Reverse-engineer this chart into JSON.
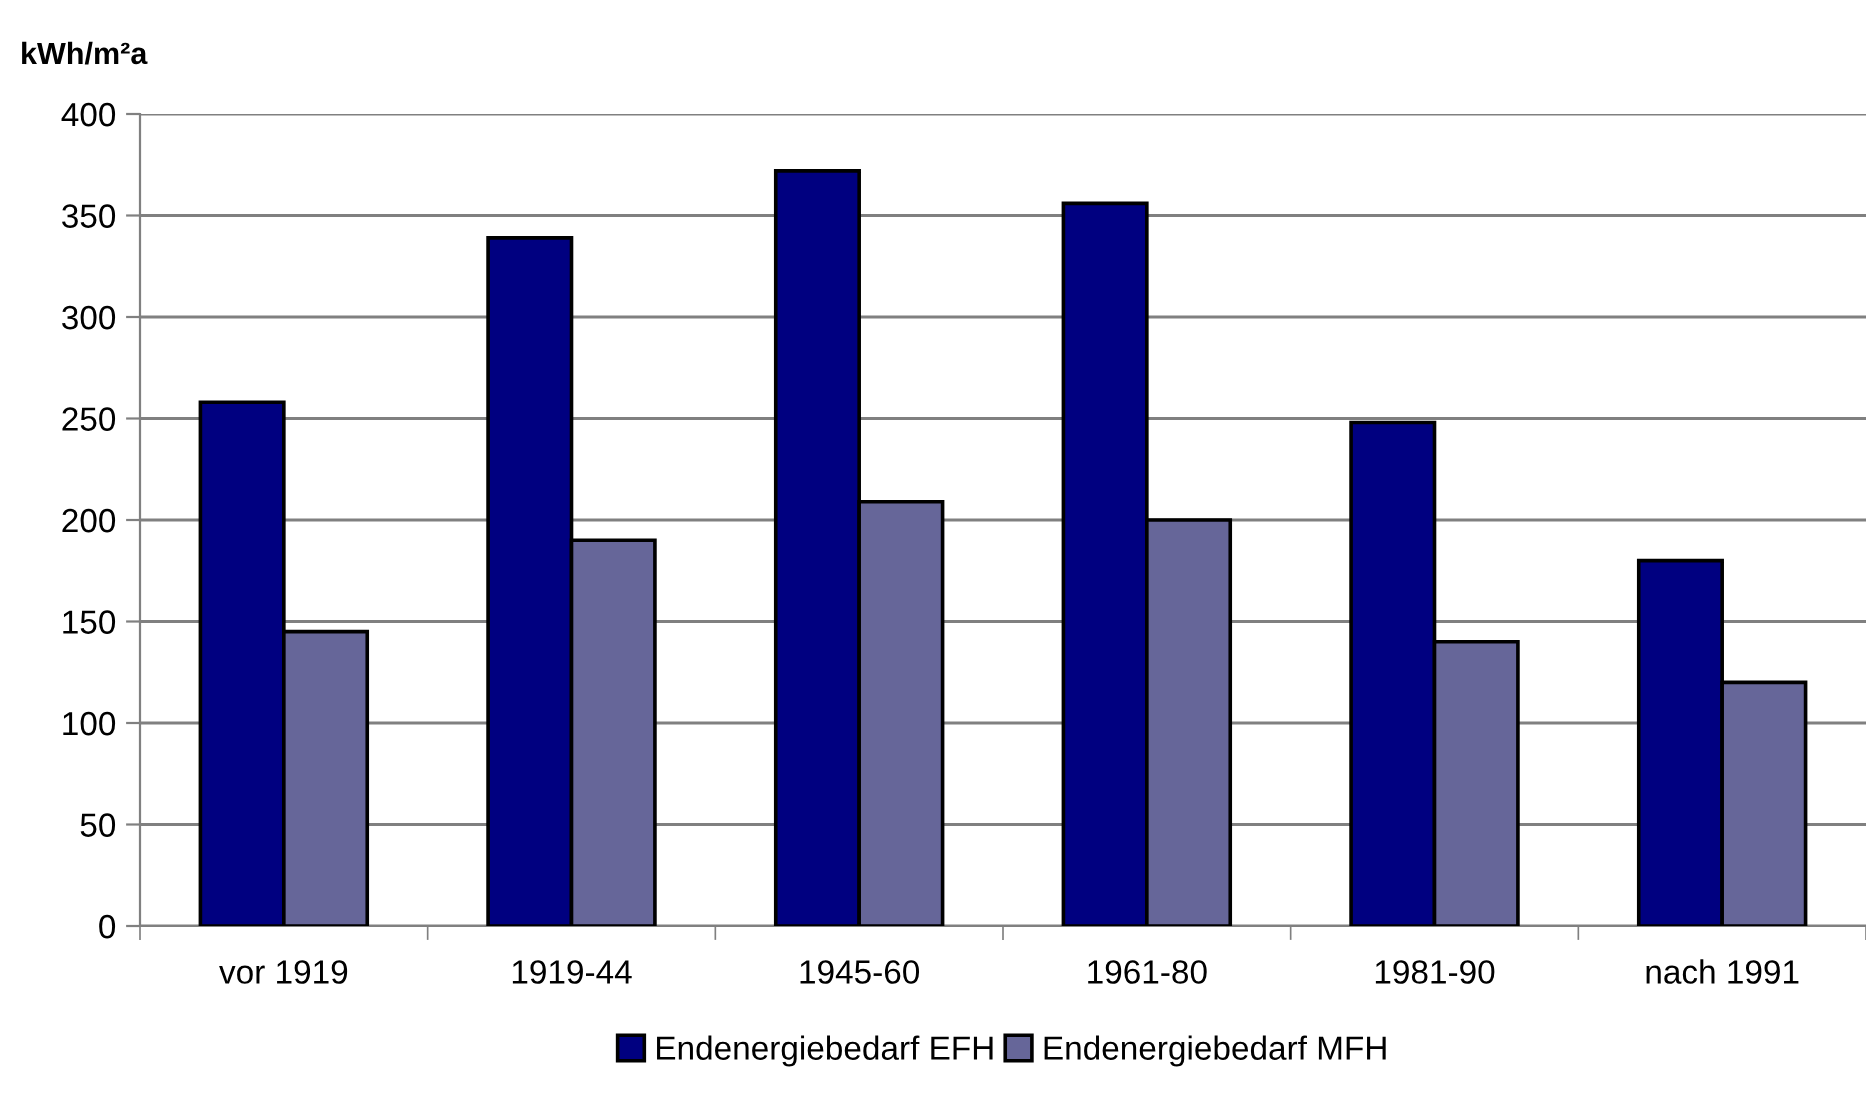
{
  "chart_data": {
    "type": "bar",
    "ylabel": "kWh/m²a",
    "categories": [
      "vor 1919",
      "1919-44",
      "1945-60",
      "1961-80",
      "1981-90",
      "nach 1991"
    ],
    "series": [
      {
        "name": "Endenergiebedarf EFH",
        "color": "#000080",
        "values": [
          258,
          339,
          372,
          356,
          248,
          180
        ]
      },
      {
        "name": "Endenergiebedarf MFH",
        "color": "#666699",
        "values": [
          145,
          190,
          209,
          200,
          140,
          120
        ]
      }
    ],
    "ylim": [
      0,
      400
    ],
    "yticks": [
      0,
      50,
      100,
      150,
      200,
      250,
      300,
      350,
      400
    ],
    "grid": "y",
    "legend": "bottom"
  }
}
